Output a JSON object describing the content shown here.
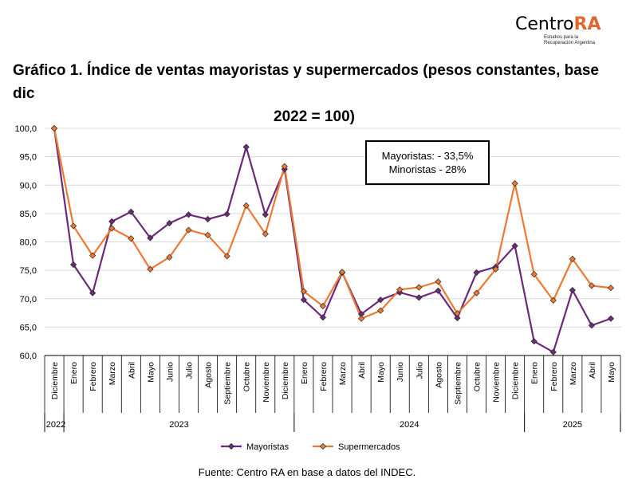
{
  "logo": {
    "brand_main": "Centro",
    "brand_accent": "RA",
    "tagline_1": "Estudios para la",
    "tagline_2": "Recuperación Argentina"
  },
  "title_line1": "Gráfico 1. Índice de ventas mayoristas y supermercados (pesos constantes, base dic",
  "title_line2": "2022 = 100)",
  "source": "Fuente: Centro RA en base a datos del INDEC.",
  "annotation": {
    "line1": "Mayoristas: - 33,5%",
    "line2": "Minoristas - 28%"
  },
  "colors": {
    "mayoristas": "#6b2a7a",
    "supermercados": "#ec7a32",
    "grid": "#d9d9d9",
    "axis": "#000000"
  },
  "chart_data": {
    "type": "line",
    "title": "Gráfico 1. Índice de ventas mayoristas y supermercados (pesos constantes, base dic 2022 = 100)",
    "xlabel": "",
    "ylabel": "",
    "ylim": [
      60,
      100
    ],
    "yticks": [
      "60,0",
      "65,0",
      "70,0",
      "75,0",
      "80,0",
      "85,0",
      "90,0",
      "95,0",
      "100,0"
    ],
    "ytick_values": [
      60,
      65,
      70,
      75,
      80,
      85,
      90,
      95,
      100
    ],
    "categories": [
      "Diciembre",
      "Enero",
      "Febrero",
      "Marzo",
      "Abril",
      "Mayo",
      "Junio",
      "Julio",
      "Agosto",
      "Septiembre",
      "Octubre",
      "Noviembre",
      "Diciembre",
      "Enero",
      "Febrero",
      "Marzo",
      "Abril",
      "Mayo",
      "Junio",
      "Julio",
      "Agosto",
      "Septiembre",
      "Octubre",
      "Noviembre",
      "Diciembre",
      "Enero",
      "Febrero",
      "Marzo",
      "Abril",
      "Mayo"
    ],
    "year_groups": [
      {
        "label": "2022",
        "start": 0,
        "end": 0
      },
      {
        "label": "2023",
        "start": 1,
        "end": 12
      },
      {
        "label": "2024",
        "start": 13,
        "end": 24
      },
      {
        "label": "2025",
        "start": 25,
        "end": 29
      }
    ],
    "series": [
      {
        "name": "Mayoristas",
        "values": [
          100,
          76,
          71,
          83.6,
          85.3,
          80.7,
          83.3,
          84.8,
          84,
          84.9,
          96.7,
          84.8,
          92.8,
          69.8,
          66.7,
          74.6,
          67.3,
          69.8,
          71.1,
          70.2,
          71.4,
          66.6,
          74.6,
          75.6,
          79.3,
          62.5,
          60.6,
          71.5,
          65.3,
          66.5
        ]
      },
      {
        "name": "Supermercados",
        "values": [
          100,
          82.8,
          77.6,
          82.4,
          80.6,
          75.2,
          77.3,
          82.1,
          81.2,
          77.5,
          86.4,
          81.4,
          93.3,
          71.3,
          68.7,
          74.7,
          66.5,
          67.9,
          71.6,
          72,
          73,
          67.4,
          71,
          75.2,
          90.3,
          74.3,
          69.7,
          77,
          72.3,
          71.9
        ]
      }
    ],
    "legend": [
      "Mayoristas",
      "Supermercados"
    ],
    "legend_position": "bottom-center",
    "grid": true
  }
}
